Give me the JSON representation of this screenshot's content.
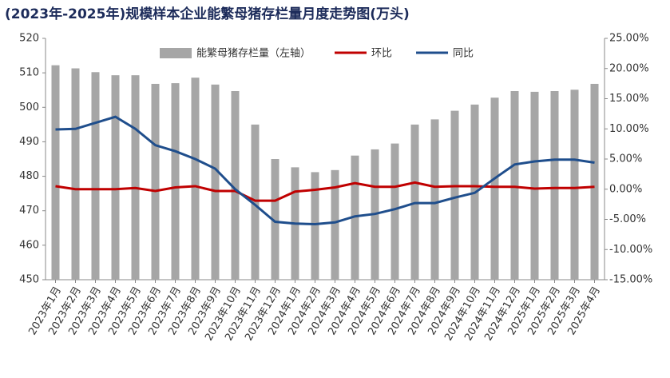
{
  "chart_data": {
    "type": "bar_line",
    "title": "(2023年-2025年)规模样本企业能繁母猪存栏量月度走势图(万头)",
    "categories": [
      "2023年1月",
      "2023年2月",
      "2023年3月",
      "2023年4月",
      "2023年5月",
      "2023年6月",
      "2023年7月",
      "2023年8月",
      "2023年9月",
      "2023年10月",
      "2023年11月",
      "2023年12月",
      "2024年1月",
      "2024年2月",
      "2024年3月",
      "2024年4月",
      "2024年5月",
      "2024年6月",
      "2024年7月",
      "2024年8月",
      "2024年9月",
      "2024年10月",
      "2024年11月",
      "2024年12月",
      "2025年1月",
      "2025年2月",
      "2025年3月",
      "2025年4月"
    ],
    "series": [
      {
        "name": "能繁母猪存栏量（左轴）",
        "type": "bar",
        "color": "#a6a6a6",
        "values": [
          512.2,
          511.3,
          510.2,
          509.3,
          509.3,
          506.8,
          507.0,
          508.6,
          506.6,
          504.7,
          495.0,
          485.0,
          482.6,
          481.2,
          481.8,
          486.0,
          487.8,
          489.5,
          495.0,
          496.5,
          499.0,
          500.8,
          502.8,
          504.7,
          504.5,
          504.7,
          505.1,
          506.8
        ]
      },
      {
        "name": "环比",
        "type": "line",
        "axis": "y2",
        "color": "#c00000",
        "values": [
          0.5,
          0,
          0,
          0,
          0.2,
          -0.3,
          0.3,
          0.5,
          -0.3,
          -0.3,
          -1.9,
          -1.9,
          -0.4,
          -0.1,
          0.3,
          1.0,
          0.4,
          0.4,
          1.1,
          0.4,
          0.5,
          0.5,
          0.4,
          0.4,
          0.1,
          0.2,
          0.2,
          0.4
        ]
      },
      {
        "name": "同比",
        "type": "line",
        "axis": "y2",
        "color": "#1f4e8c",
        "values": [
          9.9,
          10.0,
          11.0,
          12.0,
          10.0,
          7.3,
          6.3,
          5.0,
          3.4,
          0.0,
          -2.6,
          -5.4,
          -5.7,
          -5.8,
          -5.5,
          -4.5,
          -4.1,
          -3.3,
          -2.3,
          -2.3,
          -1.4,
          -0.6,
          1.8,
          4.1,
          4.6,
          4.9,
          4.9,
          4.4
        ]
      }
    ],
    "ylim": [
      450,
      520
    ],
    "yticks": [
      450,
      460,
      470,
      480,
      490,
      500,
      510,
      520
    ],
    "y2lim": [
      -15,
      25
    ],
    "y2ticks": [
      {
        "value": -15,
        "label": "-15.00%"
      },
      {
        "value": -10,
        "label": "-10.00%"
      },
      {
        "value": -5,
        "label": "-5.00%"
      },
      {
        "value": 0,
        "label": "0.00%"
      },
      {
        "value": 5,
        "label": "5.00%"
      },
      {
        "value": 10,
        "label": "10.00%"
      },
      {
        "value": 15,
        "label": "15.00%"
      },
      {
        "value": 20,
        "label": "20.00%"
      },
      {
        "value": 25,
        "label": "25.00%"
      }
    ],
    "legend": "top"
  }
}
